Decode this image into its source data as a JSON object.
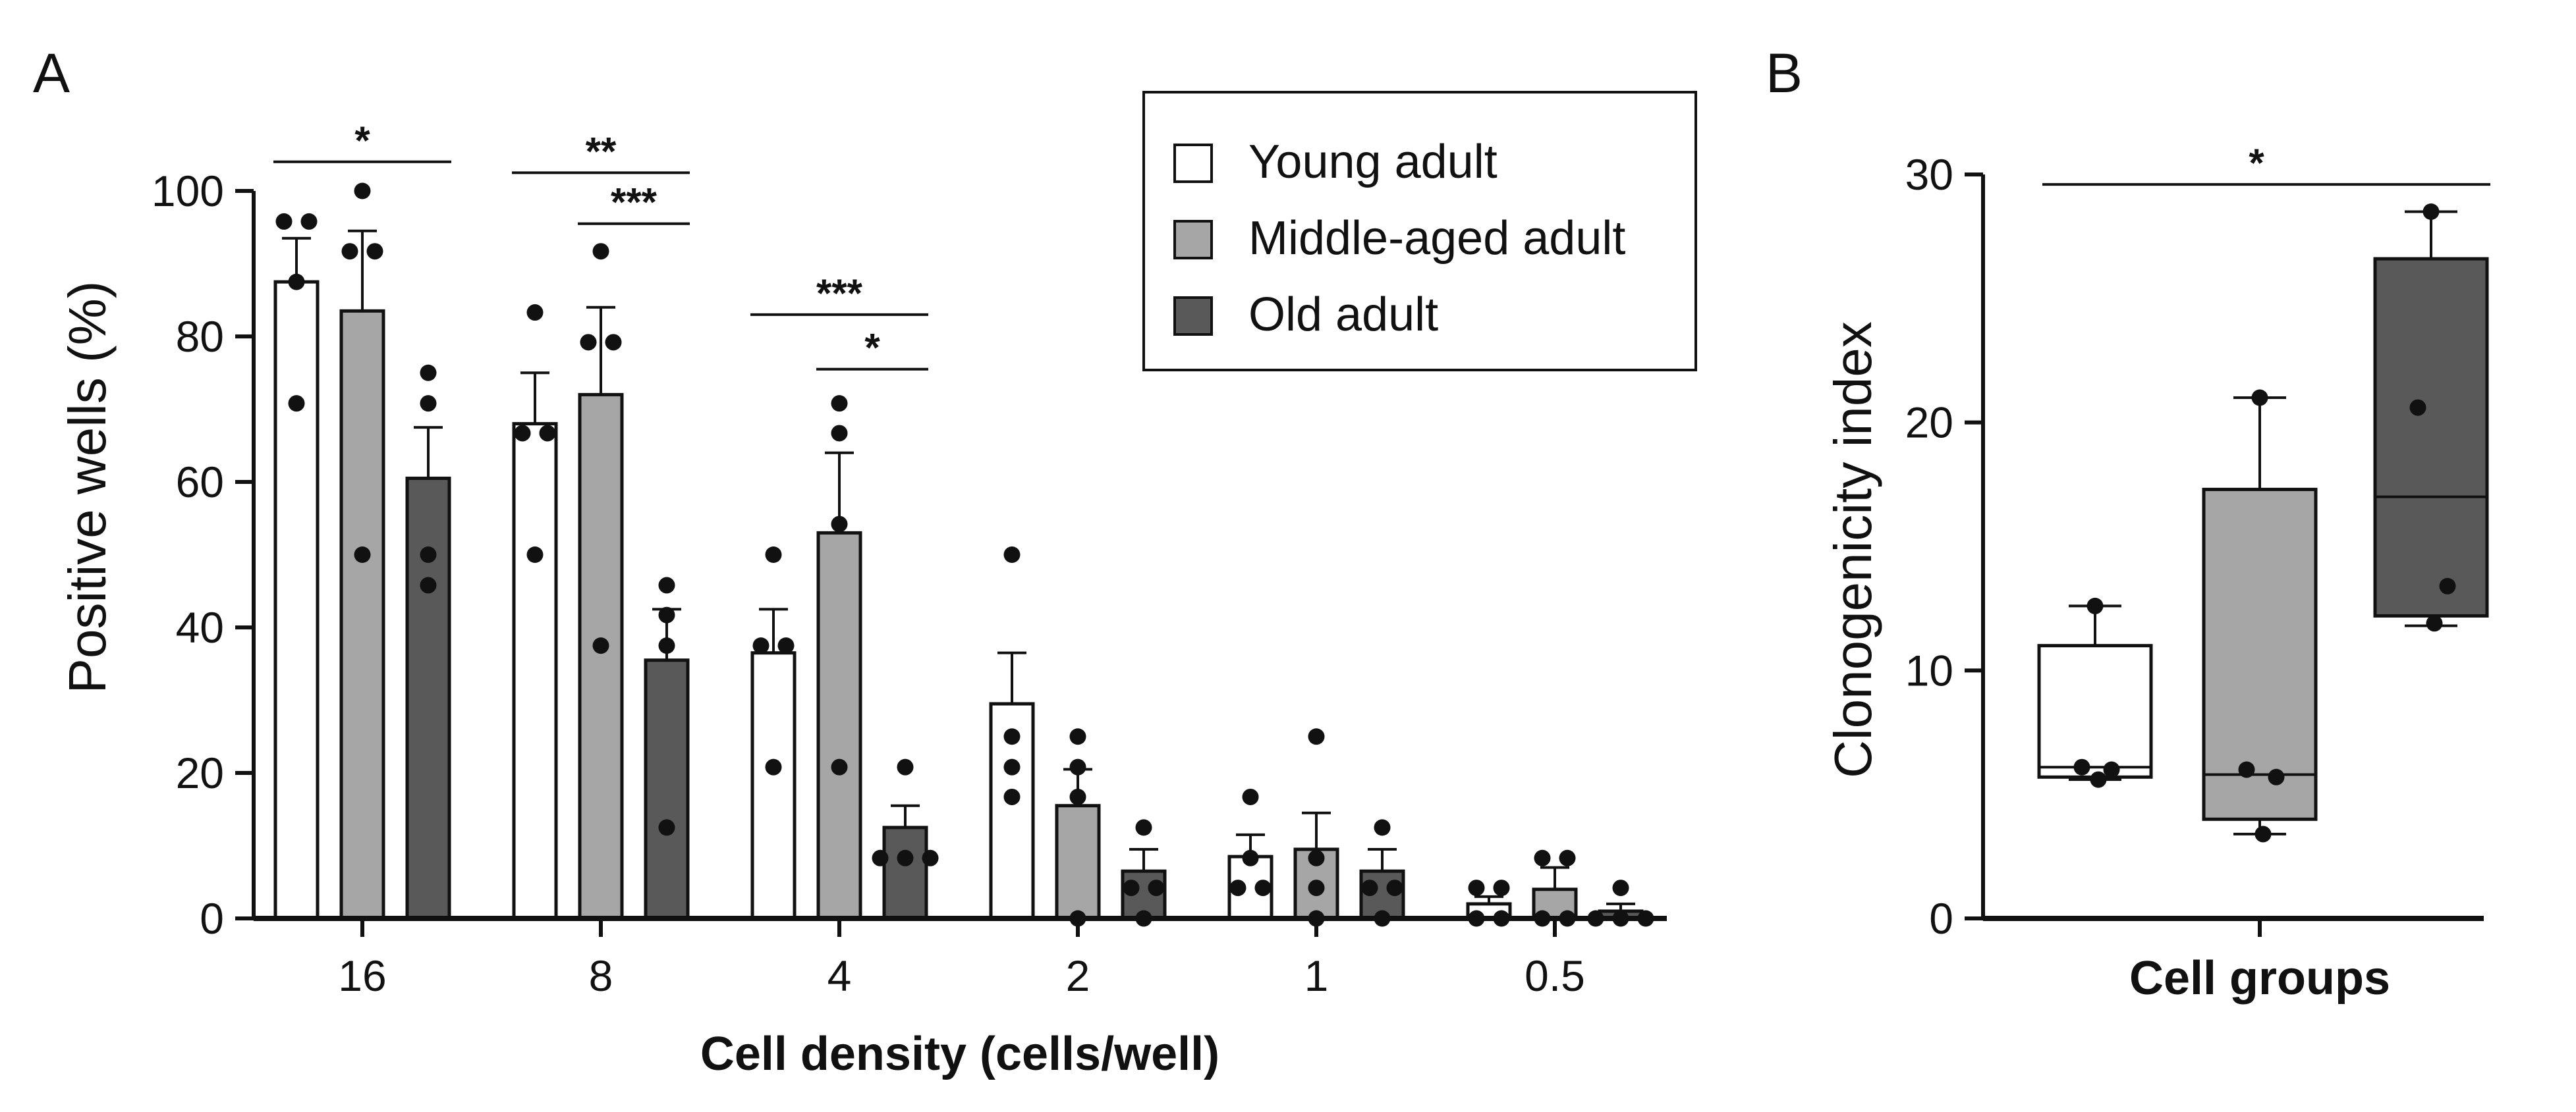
{
  "panels": {
    "a": "A",
    "b": "B"
  },
  "chart_data": [
    {
      "type": "bar",
      "panel": "A",
      "xlabel": "Cell density (cells/well)",
      "ylabel": "Positive wells (%)",
      "ylim": [
        0,
        100
      ],
      "yticks": [
        "0",
        "20",
        "40",
        "60",
        "80",
        "100"
      ],
      "categories": [
        "16",
        "8",
        "4",
        "2",
        "1",
        "0.5"
      ],
      "legend": {
        "position": "top-right",
        "items": [
          {
            "label": "Young adult",
            "color": "#ffffff"
          },
          {
            "label": "Middle-aged adult",
            "color": "#a6a6a6"
          },
          {
            "label": "Old adult",
            "color": "#595959"
          }
        ]
      },
      "series": [
        {
          "name": "Young adult",
          "color": "#ffffff",
          "values": [
            87.5,
            68,
            36.5,
            29.5,
            8.5,
            2
          ],
          "error": [
            6,
            7,
            6,
            7,
            3,
            1
          ],
          "points": [
            [
              95.8,
              95.8,
              87.5,
              70.8
            ],
            [
              83.3,
              66.7,
              66.7,
              50
            ],
            [
              50,
              37.5,
              37.5,
              20.8
            ],
            [
              50,
              25,
              20.8,
              16.7
            ],
            [
              16.7,
              8.3,
              4.2,
              4.2
            ],
            [
              4.2,
              4.2,
              0,
              0
            ]
          ]
        },
        {
          "name": "Middle-aged adult",
          "color": "#a6a6a6",
          "values": [
            83.5,
            72,
            53,
            15.5,
            9.5,
            4
          ],
          "error": [
            11,
            12,
            11,
            5,
            5,
            3
          ],
          "points": [
            [
              100,
              91.7,
              91.7,
              50
            ],
            [
              91.7,
              79.2,
              79.2,
              37.5
            ],
            [
              70.8,
              66.7,
              54.2,
              20.8
            ],
            [
              25,
              20.8,
              16.7,
              0
            ],
            [
              25,
              8.3,
              4.2,
              0
            ],
            [
              8.3,
              8.3,
              0,
              0
            ]
          ]
        },
        {
          "name": "Old adult",
          "color": "#595959",
          "values": [
            60.5,
            35.5,
            12.5,
            6.5,
            6.5,
            1
          ],
          "error": [
            7,
            7,
            3,
            3,
            3,
            1
          ],
          "points": [
            [
              75,
              70.8,
              50,
              45.8
            ],
            [
              45.8,
              41.7,
              37.5,
              12.5
            ],
            [
              20.8,
              8.3,
              8.3,
              8.3
            ],
            [
              12.5,
              4.2,
              4.2,
              0
            ],
            [
              12.5,
              4.2,
              4.2,
              0
            ],
            [
              4.2,
              0,
              0,
              0
            ]
          ]
        }
      ],
      "annotations": [
        {
          "text": "*",
          "category": 0,
          "from": 0,
          "to": 2,
          "level": 104
        },
        {
          "text": "**",
          "category": 1,
          "from": 0,
          "to": 2,
          "level": 102.5
        },
        {
          "text": "***",
          "category": 1,
          "from": 1,
          "to": 2,
          "level": 95.5
        },
        {
          "text": "***",
          "category": 2,
          "from": 0,
          "to": 2,
          "level": 83
        },
        {
          "text": "*",
          "category": 2,
          "from": 1,
          "to": 2,
          "level": 75.5
        }
      ]
    },
    {
      "type": "box",
      "panel": "B",
      "xlabel": "Cell groups",
      "ylabel": "Clonogenicity index",
      "ylim": [
        0,
        30
      ],
      "yticks": [
        "0",
        "10",
        "20",
        "30"
      ],
      "groups": [
        {
          "name": "Young adult",
          "color": "#ffffff",
          "min": 5.6,
          "q1": 5.7,
          "median": 6.1,
          "q3": 11,
          "max": 12.6,
          "points": [
            12.6,
            6.1,
            6.0,
            5.6
          ]
        },
        {
          "name": "Middle-aged adult",
          "color": "#a6a6a6",
          "min": 3.4,
          "q1": 4,
          "median": 5.8,
          "q3": 17.3,
          "max": 21,
          "points": [
            21,
            6.0,
            5.7,
            3.4
          ]
        },
        {
          "name": "Old adult",
          "color": "#595959",
          "min": 11.8,
          "q1": 12.2,
          "median": 17,
          "q3": 26.6,
          "max": 28.5,
          "points": [
            28.5,
            20.6,
            13.4,
            11.9
          ]
        }
      ],
      "annotations": [
        {
          "text": "*",
          "from": 0,
          "to": 2,
          "level": 29.6
        }
      ]
    }
  ]
}
